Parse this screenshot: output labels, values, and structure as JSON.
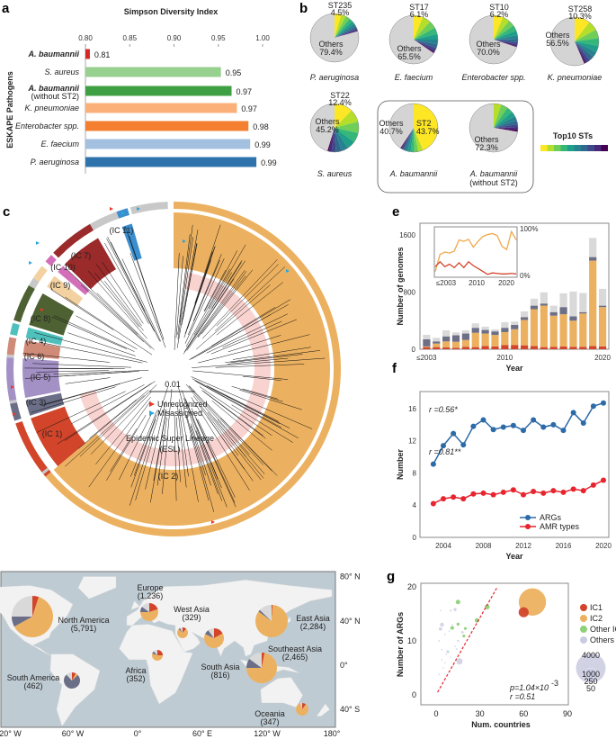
{
  "panel_labels": {
    "a": "a",
    "b": "b",
    "c": "c",
    "d": "d",
    "e": "e",
    "f": "f",
    "g": "g"
  },
  "chart_data": [
    {
      "id": "a",
      "type": "bar",
      "orientation": "horizontal",
      "title": "Simpson Diversity Index",
      "ylabel": "ESKAPE Pathogens",
      "xlim": [
        0.8,
        1.0
      ],
      "xticks": [
        "0.80",
        "0.85",
        "0.90",
        "0.95",
        "1.00"
      ],
      "categories": [
        {
          "name": "A. baumannii",
          "sub": "",
          "bold": true
        },
        {
          "name": "S. aureus",
          "sub": "",
          "bold": false
        },
        {
          "name": "A. baumannii",
          "sub": "(without ST2)",
          "bold": true
        },
        {
          "name": "K. pneumoniae",
          "sub": "",
          "bold": false
        },
        {
          "name": "Enterobacter spp.",
          "sub": "",
          "bold": false
        },
        {
          "name": "E. faecium",
          "sub": "",
          "bold": false
        },
        {
          "name": "P. aeruginosa",
          "sub": "",
          "bold": false
        }
      ],
      "values": [
        0.805,
        0.953,
        0.965,
        0.971,
        0.984,
        0.986,
        0.993
      ],
      "value_labels": [
        "0.81",
        "0.95",
        "0.97",
        "0.97",
        "0.98",
        "0.99",
        "0.99"
      ],
      "colors": [
        "#d62728",
        "#98d08f",
        "#3fa043",
        "#fbb07a",
        "#f47f30",
        "#a4c0e0",
        "#2f73ad"
      ]
    },
    {
      "id": "b",
      "type": "pie",
      "legend_title": "Top10 STs",
      "top10_colors": [
        "#fde725",
        "#b5de2b",
        "#6ece58",
        "#35b779",
        "#1f9e89",
        "#26828e",
        "#31688e",
        "#3e4989",
        "#482878",
        "#440154"
      ],
      "others_color": "#d4d4d4",
      "others_word": "Others",
      "pies": [
        {
          "name": "P. aeruginosa",
          "sub": "",
          "top_st": "ST235",
          "top_pct": 4.5,
          "top_label": "4.5%",
          "others_pct": 79.4,
          "others_label": "79.4%"
        },
        {
          "name": "E. faecium",
          "sub": "",
          "top_st": "ST17",
          "top_pct": 6.1,
          "top_label": "6.1%",
          "others_pct": 65.5,
          "others_label": "65.5%"
        },
        {
          "name": "Enterobacter spp.",
          "sub": "",
          "top_st": "ST10",
          "top_pct": 6.2,
          "top_label": "6.2%",
          "others_pct": 70.0,
          "others_label": "70.0%"
        },
        {
          "name": "K. pneumoniae",
          "sub": "",
          "top_st": "ST258",
          "top_pct": 10.3,
          "top_label": "10.3%",
          "others_pct": 56.5,
          "others_label": "56.5%"
        },
        {
          "name": "S. aureus",
          "sub": "",
          "top_st": "ST22",
          "top_pct": 12.4,
          "top_label": "12.4%",
          "others_pct": 45.2,
          "others_label": "45.2%"
        },
        {
          "name": "A. baumannii",
          "sub": "",
          "top_st": "ST2",
          "top_pct": 43.7,
          "top_label": "43.7%",
          "others_pct": 40.7,
          "others_label": "40.7%"
        },
        {
          "name": "A. baumannii",
          "sub": "(without ST2)",
          "top_st": "",
          "top_pct": null,
          "top_label": "",
          "others_pct": 72.3,
          "others_label": "72.3%"
        }
      ]
    },
    {
      "id": "c",
      "type": "tree",
      "clades": [
        {
          "label": "(IC 2)",
          "color": "#ecb160"
        },
        {
          "label": "(IC 1)",
          "color": "#d2452b"
        },
        {
          "label": "(IC 3)",
          "color": "#6b6e87"
        },
        {
          "label": "(IC 5)",
          "color": "#a390c5"
        },
        {
          "label": "(IC 6)",
          "color": "#d08a78"
        },
        {
          "label": "(IC 4)",
          "color": "#4fc1bd"
        },
        {
          "label": "(IC 8)",
          "color": "#4e6133"
        },
        {
          "label": "(IC 9)",
          "color": "#f3d1a0"
        },
        {
          "label": "(IC 10)",
          "color": "#d36fb8"
        },
        {
          "label": "(IC 7)",
          "color": "#9b2a2a"
        },
        {
          "label": "(IC 11)",
          "color": "#3b8fd0"
        }
      ],
      "esl_label": "Epidemic Super Lineage",
      "esl_abbrev": "(ESL)",
      "esl_color": "#f9d3cf",
      "scale_label": "0.01",
      "legend": [
        {
          "label": "Unrecognized",
          "color": "#e8392b"
        },
        {
          "label": "Misassigned",
          "color": "#2ea6d9"
        }
      ]
    },
    {
      "id": "d",
      "type": "map-pies",
      "lat_labels": [
        "80° N",
        "40° N",
        "0°",
        "40° S"
      ],
      "lon_labels": [
        "120° W",
        "60° W",
        "0°",
        "60° E",
        "120° W",
        "180°"
      ],
      "series_colors": {
        "IC2": "#ecb160",
        "IC1": "#d2452b",
        "Other ICs": "#6b6e87",
        "Others": "#d9d9d9"
      },
      "regions": [
        {
          "name": "North America",
          "count": "(5,791)",
          "n": 5791,
          "IC2": 0.62,
          "IC1": 0.05,
          "other_ics": 0.08,
          "others": 0.25
        },
        {
          "name": "Europe",
          "count": "(1,236)",
          "n": 1236,
          "IC2": 0.55,
          "IC1": 0.2,
          "other_ics": 0.1,
          "others": 0.15
        },
        {
          "name": "West Asia",
          "count": "(329)",
          "n": 329,
          "IC2": 0.75,
          "IC1": 0.12,
          "other_ics": 0.05,
          "others": 0.08
        },
        {
          "name": "East Asia",
          "count": "(2,284)",
          "n": 2284,
          "IC2": 0.84,
          "IC1": 0.01,
          "other_ics": 0.02,
          "others": 0.13
        },
        {
          "name": "South Asia",
          "count": "(816)",
          "n": 816,
          "IC2": 0.65,
          "IC1": 0.17,
          "other_ics": 0.08,
          "others": 0.1
        },
        {
          "name": "Southeast Asia",
          "count": "(2,465)",
          "n": 2465,
          "IC2": 0.72,
          "IC1": 0.03,
          "other_ics": 0.1,
          "others": 0.15
        },
        {
          "name": "Africa",
          "count": "(352)",
          "n": 352,
          "IC2": 0.55,
          "IC1": 0.25,
          "other_ics": 0.08,
          "others": 0.12
        },
        {
          "name": "South America",
          "count": "(462)",
          "n": 462,
          "IC2": 0.05,
          "IC1": 0.08,
          "other_ics": 0.75,
          "others": 0.12
        },
        {
          "name": "Oceania",
          "count": "(347)",
          "n": 347,
          "IC2": 0.85,
          "IC1": 0.1,
          "other_ics": 0.0,
          "others": 0.05
        }
      ]
    },
    {
      "id": "e",
      "type": "bar",
      "stacked": true,
      "ylabel": "Number of genomes",
      "xlabel": "Year",
      "ylim": [
        0,
        1700
      ],
      "yticks": [
        "0",
        "800",
        "1600"
      ],
      "xticks": [
        "≤2003",
        "2010",
        "2020"
      ],
      "series": [
        {
          "name": "IC1",
          "color": "#d2452b",
          "values": [
            30,
            30,
            25,
            20,
            35,
            30,
            45,
            40,
            60,
            60,
            55,
            45,
            30,
            35,
            40,
            35,
            35,
            45,
            40
          ]
        },
        {
          "name": "IC2",
          "color": "#ecb160",
          "values": [
            10,
            50,
            85,
            85,
            95,
            200,
            175,
            160,
            180,
            220,
            355,
            515,
            580,
            435,
            450,
            365,
            465,
            1195,
            550
          ]
        },
        {
          "name": "Other ICs",
          "color": "#6d6f86",
          "values": [
            100,
            30,
            70,
            90,
            90,
            70,
            50,
            50,
            60,
            60,
            40,
            50,
            30,
            50,
            100,
            60,
            20,
            50,
            20
          ]
        },
        {
          "name": "Others",
          "color": "#d9d9d9",
          "values": [
            62,
            50,
            85,
            41,
            45,
            62,
            46,
            28,
            79,
            47,
            80,
            97,
            156,
            90,
            193,
            348,
            267,
            268,
            236
          ]
        }
      ],
      "inset": {
        "yticks": [
          "100%",
          "0%"
        ],
        "xticks": [
          "≤2003",
          "2010",
          "2020"
        ],
        "series": [
          {
            "name": "IC2",
            "color": "#f0a84a",
            "values": [
              0.1,
              0.45,
              0.5,
              0.48,
              0.52,
              0.75,
              0.72,
              0.76,
              0.6,
              0.72,
              0.82,
              0.86,
              0.88,
              0.84,
              0.62,
              0.55,
              0.92,
              0.75
            ]
          },
          {
            "name": "IC1",
            "color": "#d2452b",
            "values": [
              0.2,
              0.3,
              0.2,
              0.25,
              0.18,
              0.28,
              0.18,
              0.3,
              0.22,
              0.16,
              0.1,
              0.04,
              0.07,
              0.06,
              0.05,
              0.05,
              0.06,
              0.05
            ]
          }
        ]
      }
    },
    {
      "id": "f",
      "type": "line",
      "ylabel": "Number",
      "xlabel": "Year",
      "ylim": [
        0,
        18
      ],
      "yticks": [
        0,
        4,
        8,
        12,
        16
      ],
      "xticks": [
        2004,
        2008,
        2012,
        2016,
        2020
      ],
      "x": [
        2003,
        2004,
        2005,
        2006,
        2007,
        2008,
        2009,
        2010,
        2011,
        2012,
        2013,
        2014,
        2015,
        2016,
        2017,
        2018,
        2019,
        2020
      ],
      "series": [
        {
          "name": "ARGs",
          "color": "#2c6aa8",
          "annotation": "r =0.56*",
          "values": [
            9.1,
            11.4,
            12.9,
            11.5,
            13.8,
            14.6,
            13.4,
            13.7,
            13.9,
            13.3,
            14.6,
            13.7,
            14.0,
            13.3,
            15.5,
            14.2,
            16.3,
            16.7
          ]
        },
        {
          "name": "AMR types",
          "color": "#e8242e",
          "annotation": "r =0.81**",
          "values": [
            4.2,
            4.8,
            5.0,
            4.8,
            5.4,
            5.5,
            5.3,
            5.6,
            5.9,
            5.3,
            5.7,
            5.5,
            5.8,
            5.6,
            6.0,
            5.8,
            6.5,
            7.1
          ]
        }
      ]
    },
    {
      "id": "g",
      "type": "scatter",
      "ylabel": "Number of ARGs",
      "xlabel": "Num. countries",
      "xlim": [
        0,
        90
      ],
      "ylim": [
        -2,
        20
      ],
      "xticks": [
        0,
        30,
        60,
        90
      ],
      "yticks": [
        0,
        10,
        20
      ],
      "stats": {
        "p": "p=1.04×10",
        "p_exp": "-3",
        "r": "r =0.51"
      },
      "regression_color": "#e8242e",
      "size_legend": [
        "4000",
        "1000",
        "250",
        "50"
      ],
      "series": [
        {
          "name": "IC1",
          "color": "#d2452b",
          "points": [
            [
              60,
              15.3,
              450
            ]
          ]
        },
        {
          "name": "IC2",
          "color": "#ecb160",
          "points": [
            [
              66,
              17.2,
              3300
            ]
          ]
        },
        {
          "name": "Other ICs",
          "color": "#8fd17a",
          "points": [
            [
              15,
              17.2,
              90
            ],
            [
              35,
              16.3,
              110
            ],
            [
              28,
              13.8,
              90
            ],
            [
              11,
              12.4,
              60
            ],
            [
              15,
              13.1,
              40
            ],
            [
              20,
              12.3,
              35
            ],
            [
              19,
              10.9,
              35
            ]
          ]
        },
        {
          "name": "Others",
          "color": "#c9cbe0",
          "points": [
            [
              4,
              13,
              70
            ],
            [
              3,
              12.2,
              50
            ],
            [
              13,
              15.8,
              40
            ],
            [
              10,
              15.6,
              15
            ],
            [
              16,
              6.2,
              180
            ],
            [
              8,
              8,
              40
            ],
            [
              6,
              11.2,
              10
            ],
            [
              2,
              10,
              10
            ],
            [
              18,
              11.6,
              30
            ],
            [
              15,
              10,
              20
            ],
            [
              14,
              8.5,
              12
            ],
            [
              4,
              8.4,
              8
            ],
            [
              9,
              11.8,
              6
            ],
            [
              3,
              15.6,
              5
            ],
            [
              11,
              13,
              5
            ],
            [
              7,
              7.5,
              4
            ],
            [
              5,
              5,
              4
            ],
            [
              12,
              5.5,
              4
            ],
            [
              10,
              7,
              3
            ],
            [
              2,
              3.8,
              3
            ],
            [
              6,
              6,
              3
            ],
            [
              13,
              9,
              3
            ],
            [
              4,
              6.5,
              3
            ]
          ]
        }
      ]
    }
  ]
}
